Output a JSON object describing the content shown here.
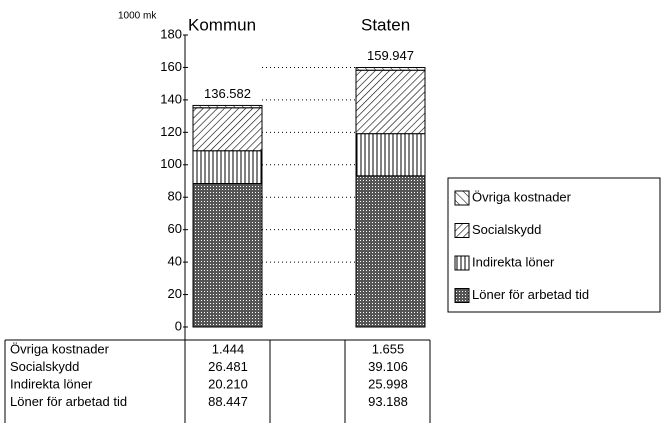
{
  "chart_data": {
    "type": "stacked_bar",
    "y_axis_label": "1000 mk",
    "categories": [
      "Kommun",
      "Staten"
    ],
    "series": [
      {
        "name": "Löner för arbetad tid",
        "color": "#000000",
        "pattern": "dots",
        "values": [
          88.447,
          93.188
        ],
        "value_labels": [
          "88.447",
          "93.188"
        ]
      },
      {
        "name": "Indirekta löner",
        "color": "#000000",
        "pattern": "vertical",
        "values": [
          20.21,
          25.998
        ],
        "value_labels": [
          "20.210",
          "25.998"
        ]
      },
      {
        "name": "Socialskydd",
        "color": "#000000",
        "pattern": "slash",
        "values": [
          26.481,
          39.106
        ],
        "value_labels": [
          "26.481",
          "39.106"
        ]
      },
      {
        "name": "Övriga kostnader",
        "color": "#000000",
        "pattern": "backslash",
        "values": [
          1.444,
          1.655
        ],
        "value_labels": [
          "1.444",
          "1.655"
        ]
      }
    ],
    "totals": [
      "136.582",
      "159.947"
    ],
    "ylim": [
      0,
      180
    ],
    "yticks": [
      0,
      20,
      40,
      60,
      80,
      100,
      120,
      140,
      160,
      180
    ],
    "grid": true,
    "legend": "right"
  }
}
